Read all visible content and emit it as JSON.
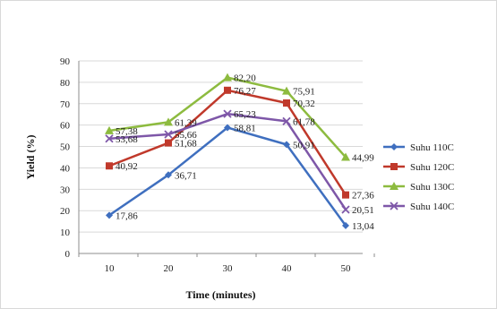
{
  "chart_data": {
    "type": "line",
    "title": "",
    "xlabel": "Time (minutes)",
    "ylabel": "Yield (%)",
    "x": [
      10,
      20,
      30,
      40,
      50
    ],
    "ylim": [
      0,
      90
    ],
    "yticks": [
      0,
      10,
      20,
      30,
      40,
      50,
      60,
      70,
      80,
      90
    ],
    "grid": true,
    "legend_position": "right",
    "series": [
      {
        "name": "Suhu 110C",
        "color": "#3f6fbf",
        "marker": "diamond",
        "values": [
          17.86,
          36.71,
          58.81,
          50.91,
          13.04
        ],
        "labels": [
          "17,86",
          "36,71",
          "58,81",
          "50,91",
          "13,04"
        ]
      },
      {
        "name": "Suhu 120C",
        "color": "#c0392b",
        "marker": "square",
        "values": [
          40.92,
          51.68,
          76.27,
          70.32,
          27.36
        ],
        "labels": [
          "40,92",
          "51,68",
          "76,27",
          "70,32",
          "27,36"
        ]
      },
      {
        "name": "Suhu 130C",
        "color": "#8dbb3f",
        "marker": "triangle",
        "values": [
          57.38,
          61.39,
          82.2,
          75.91,
          44.99
        ],
        "labels": [
          "57,38",
          "61,39",
          "82,20",
          "75,91",
          "44,99"
        ]
      },
      {
        "name": "Suhu 140C",
        "color": "#7e57a8",
        "marker": "x",
        "values": [
          53.68,
          55.66,
          65.23,
          61.78,
          20.51
        ],
        "labels": [
          "53,68",
          "55,66",
          "65,23",
          "61,78",
          "20,51"
        ]
      }
    ]
  }
}
